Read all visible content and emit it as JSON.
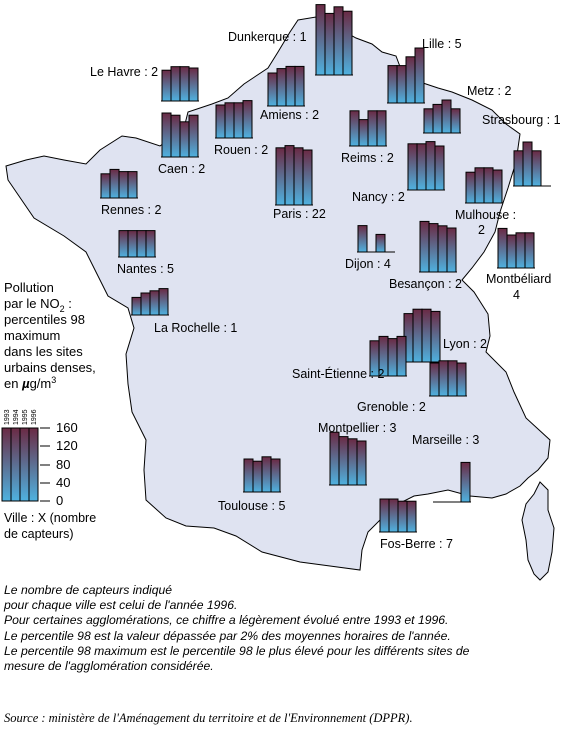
{
  "legend": {
    "title_lines": [
      "Pollution",
      "par le NO",
      "2",
      " :",
      "percentiles 98",
      "maximum",
      "dans les sites",
      "urbains denses,",
      "en ",
      "µ",
      "g/m",
      "3"
    ],
    "years": [
      "1993",
      "1994",
      "1995",
      "1996"
    ],
    "scale_values": [
      "160",
      "120",
      "80",
      "40",
      "0"
    ],
    "scale_max": 160,
    "key_lines": [
      "Ville : X (nombre",
      "de capteurs)"
    ]
  },
  "colors": {
    "map_fill": "#dfe3f1",
    "bar_top": "#6a2a44",
    "bar_bottom": "#4fb2e0",
    "outline": "#000000"
  },
  "cities": [
    {
      "label": "Dunkerque : 1",
      "values": [
        160,
        140,
        155,
        145
      ]
    },
    {
      "label": "Lille : 5",
      "values": [
        85,
        85,
        105,
        125
      ]
    },
    {
      "label": "Le Havre : 2",
      "values": [
        70,
        78,
        78,
        75
      ]
    },
    {
      "label": "Amiens : 2",
      "values": [
        75,
        85,
        90,
        90
      ]
    },
    {
      "label": "Metz : 2",
      "values": [
        55,
        65,
        75,
        55
      ]
    },
    {
      "label": "Strasbourg : 1",
      "values": [
        80,
        100,
        80,
        0
      ]
    },
    {
      "label": "Caen : 2",
      "values": [
        100,
        95,
        80,
        95
      ]
    },
    {
      "label": "Rouen : 2",
      "values": [
        75,
        80,
        80,
        85
      ]
    },
    {
      "label": "Reims : 2",
      "values": [
        80,
        60,
        80,
        80
      ]
    },
    {
      "label": "Paris : 22",
      "values": [
        130,
        135,
        130,
        125
      ]
    },
    {
      "label": "Nancy : 2",
      "values": [
        105,
        105,
        110,
        100
      ]
    },
    {
      "label": "Rennes : 2",
      "values": [
        55,
        65,
        60,
        60
      ]
    },
    {
      "label": "Mulhouse : 2",
      "values": [
        70,
        80,
        80,
        75
      ]
    },
    {
      "label": "Nantes : 5",
      "values": [
        60,
        60,
        60,
        60
      ]
    },
    {
      "label": "Dijon : 4",
      "values": [
        60,
        0,
        40,
        0
      ]
    },
    {
      "label": "Montbéliard : 4",
      "values": [
        90,
        75,
        80,
        80
      ]
    },
    {
      "label": "Besançon : 2",
      "values": [
        115,
        110,
        105,
        100
      ]
    },
    {
      "label": "La Rochelle : 1",
      "values": [
        40,
        50,
        55,
        60
      ]
    },
    {
      "label": "Lyon : 2",
      "values": [
        110,
        120,
        120,
        115
      ]
    },
    {
      "label": "Saint-Étienne : 2",
      "values": [
        80,
        90,
        85,
        90
      ]
    },
    {
      "label": "Grenoble : 2",
      "values": [
        75,
        80,
        80,
        75
      ]
    },
    {
      "label": "Montpellier : 3",
      "values": [
        120,
        110,
        105,
        100
      ]
    },
    {
      "label": "Marseille : 3",
      "values": [
        0,
        0,
        0,
        90
      ]
    },
    {
      "label": "Toulouse : 5",
      "values": [
        75,
        70,
        80,
        75
      ]
    },
    {
      "label": "Fos-Berre : 7",
      "values": [
        75,
        75,
        70,
        70
      ]
    }
  ],
  "notes": [
    "Le nombre de capteurs indiqué",
    "pour chaque ville est celui de l'année 1996.",
    "Pour certaines agglomérations, ce chiffre a légèrement évolué entre 1993 et 1996.",
    "Le percentile 98  est la valeur dépassée par 2% des moyennes horaires de l'année.",
    "Le percentile 98 maximum est le percentile 98 le plus élevé pour les différents sites de",
    "mesure de l'agglomération considérée."
  ],
  "source": "Source : ministère de l'Aménagement du territoire et de l'Environnement (DPPR)."
}
